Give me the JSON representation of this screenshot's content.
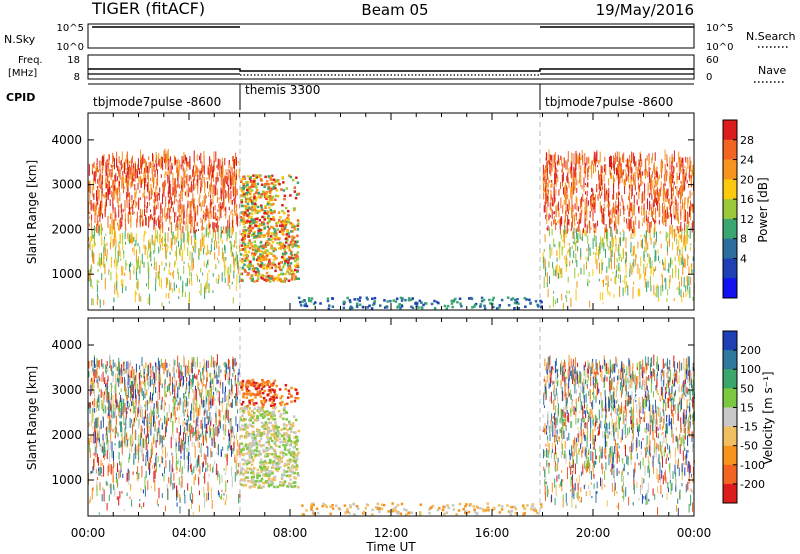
{
  "header": {
    "title": "TIGER (fitACF)",
    "beam": "Beam 05",
    "date": "19/May/2016"
  },
  "nsky": {
    "label": "N.Sky",
    "ticks": [
      "10^5",
      "10^0"
    ],
    "right_ticks": [
      "10^5",
      "10^0"
    ],
    "right_label": "N.Search"
  },
  "freq": {
    "label_line1": "Freq.",
    "label_line2": "[MHz]",
    "ticks": [
      "18",
      "8"
    ],
    "right_ticks": [
      "60",
      "0"
    ],
    "right_label": "Nave"
  },
  "cpid": {
    "label": "CPID",
    "segments": [
      {
        "name": "tbjmode7pulse -8600",
        "start": 0,
        "end": 6
      },
      {
        "name": "themis 3300",
        "start": 6,
        "end": 18
      },
      {
        "name": "tbjmode7pulse -8600",
        "start": 18,
        "end": 24
      }
    ]
  },
  "panels": [
    {
      "name": "power",
      "ylabel": "Slant Range [km]",
      "colorbar_label": "Power [dB]",
      "colorbar_ticks": [
        "28",
        "24",
        "20",
        "16",
        "12",
        "8",
        "4"
      ],
      "colorbar_colors": [
        "#dc1c1c",
        "#f26422",
        "#f7941d",
        "#fcc90f",
        "#9bc93a",
        "#3aa672",
        "#2d6e9e",
        "#1f3fb4",
        "#1010f0"
      ]
    },
    {
      "name": "velocity",
      "ylabel": "Slant Range [km]",
      "colorbar_label": "Velocity [m s⁻¹]",
      "colorbar_ticks": [
        "200",
        "100",
        "50",
        "15",
        "-15",
        "-50",
        "-100",
        "-200"
      ],
      "colorbar_colors": [
        "#1f3fb4",
        "#2d7a9e",
        "#3aa66a",
        "#7cc840",
        "#c8c8c8",
        "#f0c060",
        "#f7941d",
        "#f26422",
        "#dc1c1c"
      ]
    }
  ],
  "chart_data": {
    "type": "heatmap",
    "x_ticks": [
      "00:00",
      "04:00",
      "08:00",
      "12:00",
      "16:00",
      "20:00",
      "00:00"
    ],
    "xlabel": "Time UT",
    "xlim_hours": [
      0,
      24
    ],
    "ylim_km": [
      200,
      4600
    ],
    "y_ticks": [
      1000,
      2000,
      3000,
      4000
    ],
    "mode_boundaries_hours": [
      6,
      18
    ],
    "scatter_regions": [
      {
        "t0": 0,
        "t1": 6,
        "r0": 200,
        "r1": 3550,
        "density": "moderate"
      },
      {
        "t0": 6,
        "t1": 8.3,
        "r0": 800,
        "r1": 3200,
        "density": "high"
      },
      {
        "t0": 8.3,
        "t1": 18,
        "r0": 200,
        "r1": 450,
        "density": "sparse"
      },
      {
        "t0": 18,
        "t1": 24,
        "r0": 200,
        "r1": 3550,
        "density": "moderate"
      }
    ]
  }
}
